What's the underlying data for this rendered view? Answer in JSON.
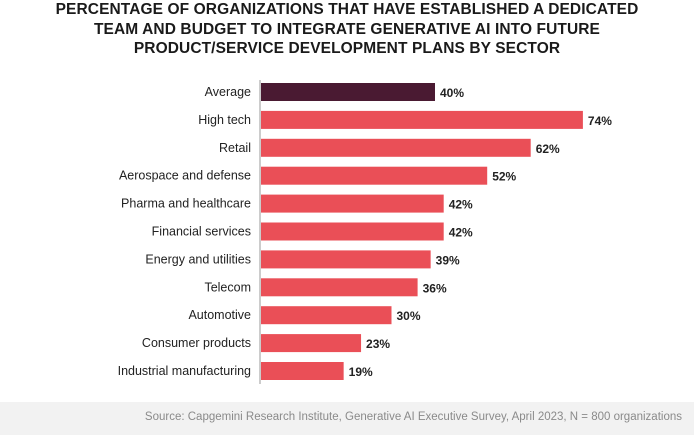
{
  "chart_data": {
    "type": "bar",
    "orientation": "horizontal",
    "title_lines": [
      "PERCENTAGE OF ORGANIZATIONS THAT HAVE ESTABLISHED A DEDICATED",
      "TEAM AND BUDGET TO INTEGRATE GENERATIVE AI INTO FUTURE",
      "PRODUCT/SERVICE DEVELOPMENT PLANS BY SECTOR"
    ],
    "categories": [
      "Average",
      "High tech",
      "Retail",
      "Aerospace and defense",
      "Pharma and healthcare",
      "Financial services",
      "Energy and utilities",
      "Telecom",
      "Automotive",
      "Consumer products",
      "Industrial manufacturing"
    ],
    "values": [
      40,
      74,
      62,
      52,
      42,
      42,
      39,
      36,
      30,
      23,
      19
    ],
    "value_labels": [
      "40%",
      "74%",
      "62%",
      "52%",
      "42%",
      "42%",
      "39%",
      "36%",
      "30%",
      "23%",
      "19%"
    ],
    "xlim": [
      0,
      100
    ],
    "grid": false,
    "colors": {
      "highlight": "#4a1a32",
      "bar": "#ea4f57",
      "axis": "#9a9a9a"
    }
  },
  "source": "Source: Capgemini Research Institute, Generative AI Executive Survey, April 2023, N = 800 organizations"
}
